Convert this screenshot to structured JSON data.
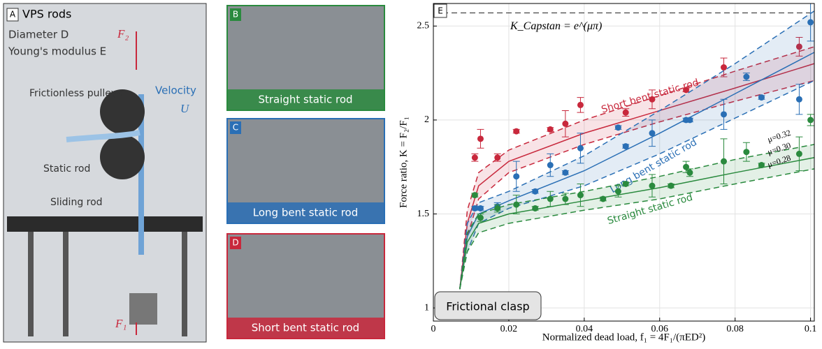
{
  "panels": [
    {
      "label": "A",
      "title": "VPS rods",
      "texts": [
        "Diameter D",
        "Young's modulus E",
        "F₂",
        "F₁",
        "Velocity",
        "U",
        "Frictionless pulleys",
        "Static rod",
        "Sliding rod"
      ]
    },
    {
      "label": "B",
      "caption": "Straight static rod"
    },
    {
      "label": "C",
      "caption": "Long bent static rod"
    },
    {
      "label": "D",
      "caption": "Short bent static rod"
    }
  ],
  "chart_data": {
    "type": "scatter",
    "panel_label": "E",
    "xlabel": "Normalized dead load, f₁ = 4F₁/(πED²)",
    "ylabel": "Force ratio, K = F₂/F₁",
    "xlim": [
      0,
      0.101
    ],
    "ylim": [
      0.93,
      2.62
    ],
    "xticks": [
      0,
      0.02,
      0.04,
      0.06,
      0.08,
      0.1
    ],
    "yticks": [
      1,
      1.5,
      2,
      2.5
    ],
    "grid": true,
    "capstan_label": "K_Capstan = e^(μπ)",
    "capstan_value": 2.57,
    "clasp_label": "Frictional clasp",
    "mu_labels": [
      "μ=0.32",
      "μ=0.30",
      "μ=0.28"
    ],
    "fit_x": [
      0.007,
      0.009,
      0.012,
      0.02,
      0.04,
      0.06,
      0.08,
      0.101
    ],
    "series": [
      {
        "name": "Short bent static rod",
        "color": "#c8283c",
        "x": [
          0.011,
          0.0125,
          0.017,
          0.022,
          0.031,
          0.035,
          0.039,
          0.051,
          0.058,
          0.067,
          0.077,
          0.097
        ],
        "values": [
          1.8,
          1.9,
          1.8,
          1.94,
          1.95,
          1.98,
          2.08,
          2.04,
          2.11,
          2.16,
          2.28,
          2.39
        ],
        "errors": [
          0.02,
          0.05,
          0.02,
          0.01,
          0.01,
          0.07,
          0.04,
          0.02,
          0.05,
          0.01,
          0.05,
          0.05
        ],
        "fit": [
          1.1,
          1.45,
          1.65,
          1.78,
          1.93,
          2.05,
          2.17,
          2.3
        ],
        "fit_lower": [
          1.1,
          1.38,
          1.58,
          1.72,
          1.87,
          1.99,
          2.1,
          2.21
        ],
        "fit_upper": [
          1.1,
          1.52,
          1.72,
          1.84,
          2,
          2.13,
          2.26,
          2.39
        ]
      },
      {
        "name": "Long bent static rod",
        "color": "#2a6fb5",
        "x": [
          0.011,
          0.0125,
          0.017,
          0.022,
          0.027,
          0.031,
          0.035,
          0.039,
          0.049,
          0.051,
          0.058,
          0.067,
          0.068,
          0.077,
          0.083,
          0.087,
          0.097,
          0.1
        ],
        "values": [
          1.53,
          1.53,
          1.54,
          1.7,
          1.62,
          1.76,
          1.72,
          1.85,
          1.96,
          1.86,
          1.93,
          2,
          2,
          2.03,
          2.23,
          2.12,
          2.11,
          2.52
        ],
        "errors": [
          0.01,
          0.01,
          0.02,
          0.08,
          0.01,
          0.06,
          0.01,
          0.08,
          0.01,
          0.01,
          0.07,
          0.01,
          0.01,
          0.08,
          0.02,
          0.01,
          0.08,
          0.1
        ],
        "fit": [
          1.1,
          1.38,
          1.5,
          1.57,
          1.73,
          1.93,
          2.14,
          2.36
        ],
        "fit_lower": [
          1.1,
          1.3,
          1.45,
          1.53,
          1.65,
          1.82,
          2.01,
          2.21
        ],
        "fit_upper": [
          1.1,
          1.45,
          1.56,
          1.62,
          1.81,
          2.05,
          2.3,
          2.58
        ]
      },
      {
        "name": "Straight static rod",
        "color": "#2a8a3e",
        "x": [
          0.011,
          0.0125,
          0.017,
          0.022,
          0.027,
          0.031,
          0.035,
          0.039,
          0.045,
          0.049,
          0.051,
          0.058,
          0.063,
          0.067,
          0.068,
          0.077,
          0.083,
          0.087,
          0.097,
          0.1
        ],
        "values": [
          1.6,
          1.48,
          1.53,
          1.55,
          1.53,
          1.58,
          1.58,
          1.6,
          1.58,
          1.62,
          1.66,
          1.65,
          1.65,
          1.75,
          1.72,
          1.78,
          1.83,
          1.76,
          1.82,
          2
        ],
        "errors": [
          0.01,
          0.02,
          0.02,
          0.05,
          0.01,
          0.04,
          0.03,
          0.06,
          0.01,
          0.03,
          0.01,
          0.06,
          0.01,
          0.03,
          0.02,
          0.12,
          0.05,
          0.01,
          0.09,
          0.03
        ],
        "fit": [
          1.1,
          1.35,
          1.45,
          1.5,
          1.57,
          1.64,
          1.72,
          1.8
        ],
        "fit_lower": [
          1.1,
          1.3,
          1.4,
          1.45,
          1.52,
          1.58,
          1.66,
          1.74
        ],
        "fit_upper": [
          1.1,
          1.4,
          1.5,
          1.55,
          1.62,
          1.7,
          1.79,
          1.87
        ]
      }
    ]
  }
}
